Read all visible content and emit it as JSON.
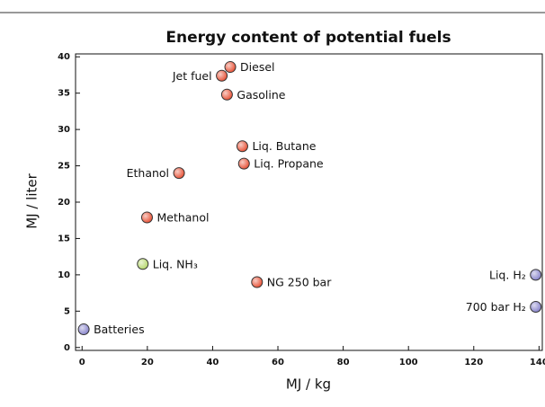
{
  "chart_data": {
    "type": "scatter",
    "title": "Energy content of potential fuels",
    "xlabel": "MJ / kg",
    "ylabel": "MJ / liter",
    "labels": [
      "Batteries",
      "700 bar H₂",
      "Liq. H₂",
      "NG 250 bar",
      "Liq. NH₃",
      "Methanol",
      "Ethanol",
      "Liq. Propane",
      "Liq. Butane",
      "Gasoline",
      "Jet fuel",
      "Diesel"
    ],
    "x": [
      0.5,
      139,
      139,
      53.6,
      18.6,
      19.9,
      29.7,
      49.6,
      49.1,
      44.4,
      42.8,
      45.4
    ],
    "values": [
      2.5,
      5.6,
      10,
      9,
      11.5,
      17.9,
      24,
      25.3,
      27.7,
      34.8,
      37.4,
      38.6
    ],
    "colors": [
      "#8a86cc",
      "#8a86cc",
      "#8a86cc",
      "#e8553a",
      "#b8d870",
      "#e8553a",
      "#e8553a",
      "#e8553a",
      "#e8553a",
      "#e8553a",
      "#e8553a",
      "#e8553a"
    ],
    "xlim": [
      -2,
      141
    ],
    "ylim": [
      -0.4,
      40.4
    ],
    "xticks": [
      0,
      20,
      40,
      60,
      80,
      100,
      120,
      140
    ],
    "yticks": [
      0,
      5,
      10,
      15,
      20,
      25,
      30,
      35,
      40
    ]
  }
}
